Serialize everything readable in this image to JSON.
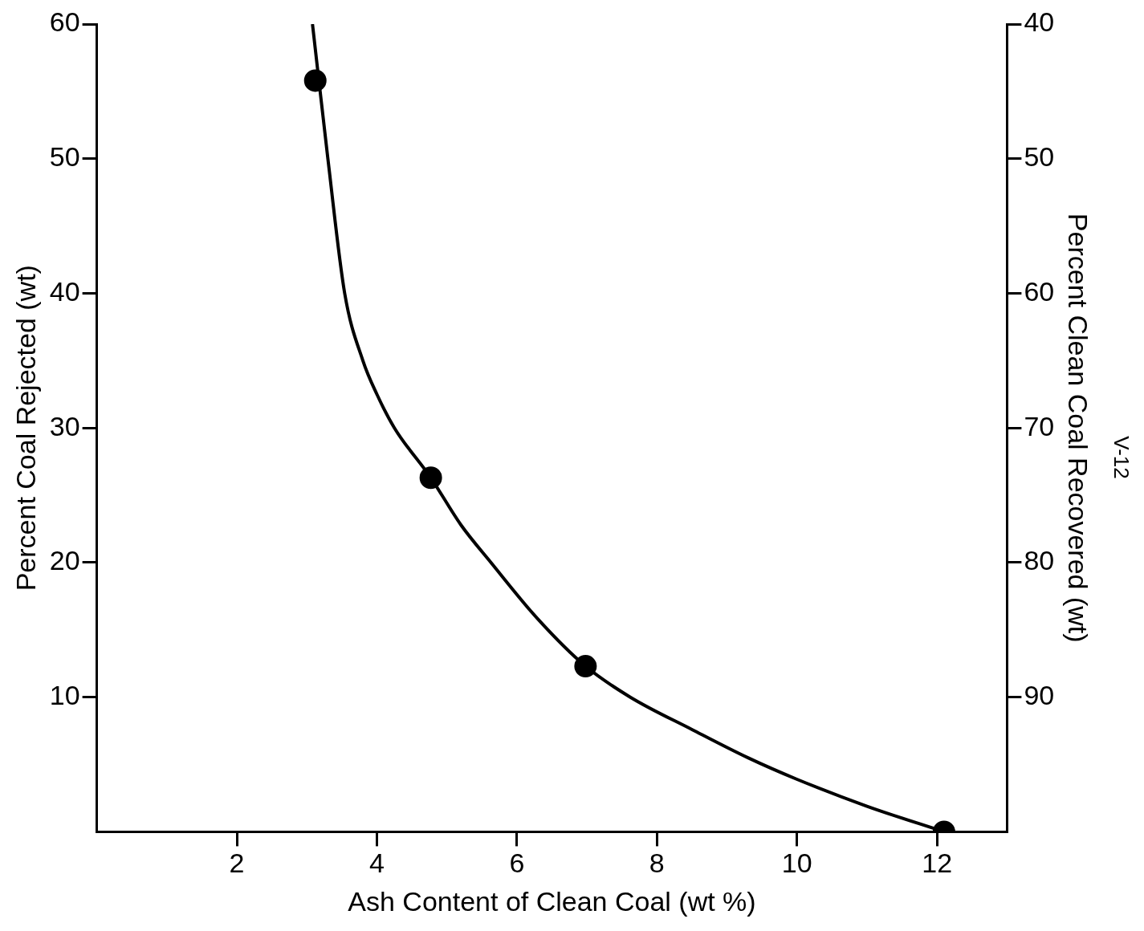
{
  "chart_data": {
    "type": "scatter",
    "xlabel": "Ash Content of Clean Coal (wt %)",
    "ylabel": "Percent Coal Rejected (wt)",
    "y2label": "Percent Clean Coal Recovered (wt)",
    "xlim": [
      0,
      13
    ],
    "xticks": [
      2,
      4,
      6,
      8,
      10,
      12
    ],
    "ylim": [
      0,
      60
    ],
    "yticks": [
      10,
      20,
      30,
      40,
      50,
      60
    ],
    "y2lim": [
      100,
      40
    ],
    "y2ticks": [
      40,
      50,
      60,
      70,
      80,
      90
    ],
    "grid": false,
    "marker": "circle",
    "series": [
      {
        "type": "line",
        "color": "#000000",
        "marker": "none",
        "line_style": "solid",
        "x": [
          3.08,
          3.3,
          3.54,
          3.8,
          4.0,
          4.25,
          4.77,
          5.2,
          5.63,
          6.3,
          6.98,
          7.62,
          8.5,
          9.3,
          10,
          11,
          12.1
        ],
        "values": [
          60,
          50,
          40,
          35,
          32.5,
          30,
          26.3,
          22.8,
          20,
          15.8,
          12.3,
          10,
          7.6,
          5.5,
          3.9,
          1.9,
          0
        ]
      },
      {
        "color": "#000000",
        "x": [
          3.12,
          4.77,
          6.98,
          12.1
        ],
        "values": [
          55.8,
          26.3,
          12.3,
          0
        ]
      }
    ],
    "annotations": [
      "V-12"
    ]
  }
}
